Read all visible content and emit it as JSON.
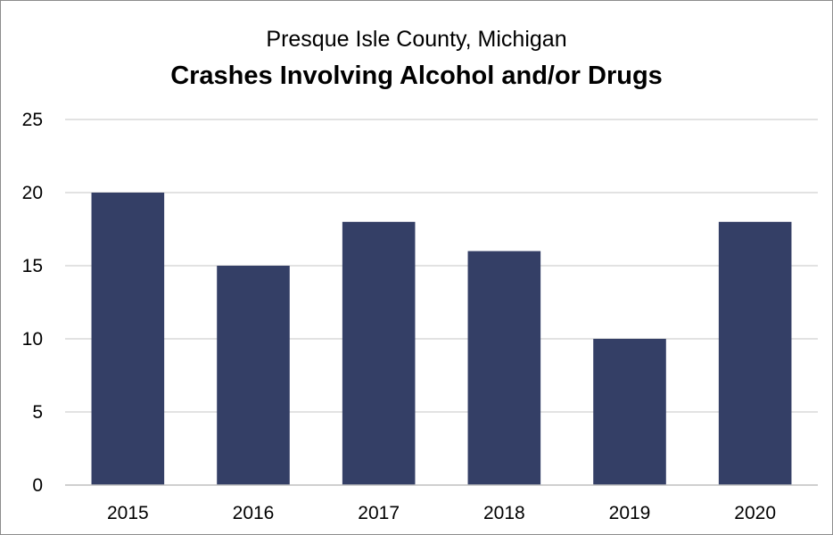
{
  "chart_data": {
    "type": "bar",
    "title": "Crashes Involving Alcohol and/or Drugs",
    "subtitle": "Presque Isle County, Michigan",
    "xlabel": "",
    "ylabel": "",
    "categories": [
      "2015",
      "2016",
      "2017",
      "2018",
      "2019",
      "2020"
    ],
    "values": [
      20,
      15,
      18,
      16,
      10,
      18
    ],
    "ylim": [
      0,
      25
    ],
    "yticks": [
      0,
      5,
      10,
      15,
      20,
      25
    ],
    "ytick_labels": [
      "0",
      "5",
      "10",
      "15",
      "20",
      "25"
    ],
    "grid": true,
    "legend": "none",
    "colors": {
      "bar": "#343f66",
      "grid": "#d9d9d9",
      "axis": "#bfbfbf",
      "border": "#8c8c8c"
    }
  }
}
